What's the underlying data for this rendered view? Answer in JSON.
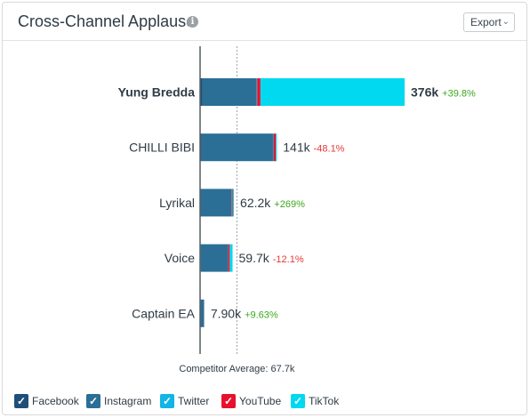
{
  "header": {
    "title": "Cross-Channel Applause",
    "export_label": "Export",
    "chevron": "⌄"
  },
  "colors": {
    "Facebook": "#1f4e79",
    "Instagram": "#2b6e96",
    "Twitter": "#12b5e5",
    "YouTube": "#e8112d",
    "TikTok": "#00d9ef",
    "positive": "#3aa81b",
    "negative": "#e53935"
  },
  "legend": [
    {
      "label": "Facebook",
      "color": "#1f4e79",
      "checked": "✓"
    },
    {
      "label": "Instagram",
      "color": "#2b6e96",
      "checked": "✓"
    },
    {
      "label": "Twitter",
      "color": "#12b5e5",
      "checked": "✓"
    },
    {
      "label": "YouTube",
      "color": "#e8112d",
      "checked": "✓"
    },
    {
      "label": "TikTok",
      "color": "#00d9ef",
      "checked": "✓"
    }
  ],
  "chart_data": {
    "type": "bar",
    "orientation": "horizontal",
    "stacked": true,
    "categories": [
      "Yung Bredda",
      "CHILLI BIBI",
      "Lyrikal",
      "Voice",
      "Captain EA"
    ],
    "highlighted": "Yung Bredda",
    "series": [
      {
        "name": "Facebook",
        "values": [
          4000,
          3000,
          1500,
          1200,
          1500
        ]
      },
      {
        "name": "Instagram",
        "values": [
          100000,
          131000,
          56200,
          50000,
          5400
        ]
      },
      {
        "name": "Twitter",
        "values": [
          1000,
          1000,
          500,
          300,
          200
        ]
      },
      {
        "name": "YouTube",
        "values": [
          6000,
          4000,
          2000,
          3000,
          400
        ]
      },
      {
        "name": "TikTok",
        "values": [
          265000,
          2000,
          2000,
          5200,
          400
        ]
      }
    ],
    "totals": [
      "376k",
      "141k",
      "62.2k",
      "59.7k",
      "7.90k"
    ],
    "changes": [
      "+39.8%",
      "-48.1%",
      "+269%",
      "-12.1%",
      "+9.63%"
    ],
    "average": 67700,
    "average_label": "Competitor Average: 67.7k",
    "xlim": [
      0,
      376000
    ],
    "grid": false,
    "legend_position": "bottom"
  }
}
